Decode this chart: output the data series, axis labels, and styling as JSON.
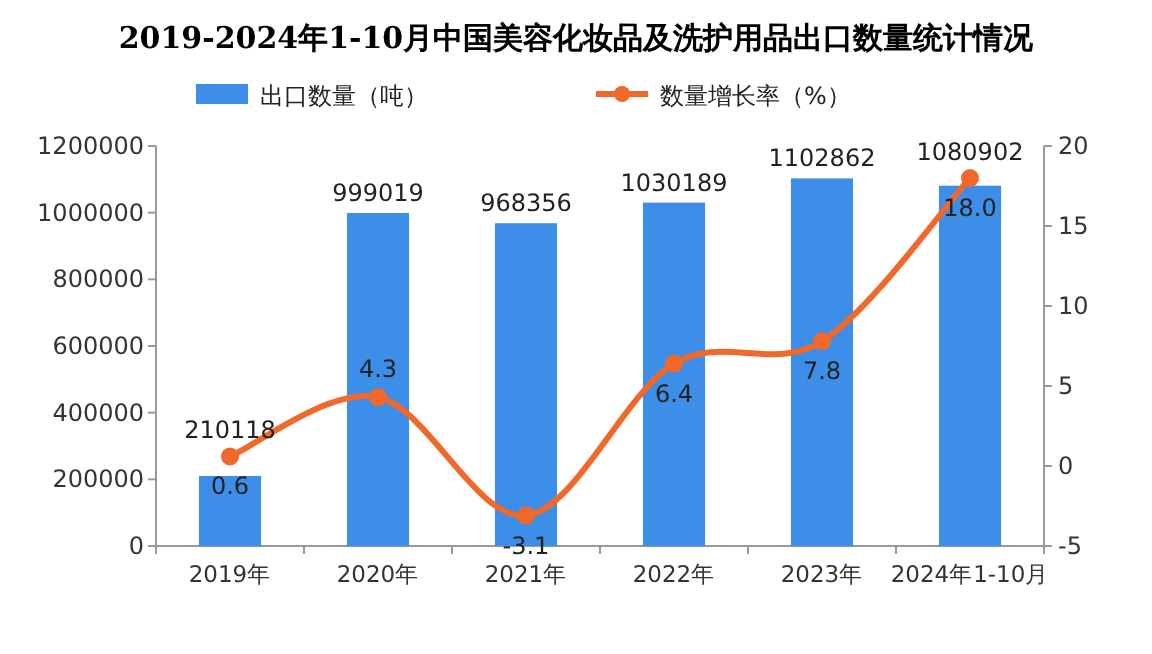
{
  "chart_data": {
    "type": "bar",
    "title": "2019-2024年1-10月中国美容化妆品及洗护用品出口数量统计情况",
    "categories": [
      "2019年",
      "2020年",
      "2021年",
      "2022年",
      "2023年",
      "2024年1-10月"
    ],
    "series": [
      {
        "name": "出口数量（吨）",
        "color": "#3d8ee8",
        "values": [
          210118,
          999019,
          968356,
          1030189,
          1102862,
          1080902
        ]
      },
      {
        "name": "数量增长率（%）",
        "type": "line",
        "axis": "y2",
        "color": "#f0682a",
        "marker": "circle",
        "values": [
          0.6,
          4.3,
          -3.1,
          6.4,
          7.8,
          18.0
        ],
        "value_labels": [
          "0.6",
          "4.3",
          "-3.1",
          "6.4",
          "7.8",
          "18.0"
        ]
      }
    ],
    "ylim": [
      0,
      1200000
    ],
    "yticks": [
      0,
      200000,
      400000,
      600000,
      800000,
      1000000,
      1200000
    ],
    "y2lim": [
      -5,
      20
    ],
    "y2ticks": [
      -5,
      0,
      5,
      10,
      15,
      20
    ],
    "legend": "top",
    "data_labels": true
  }
}
